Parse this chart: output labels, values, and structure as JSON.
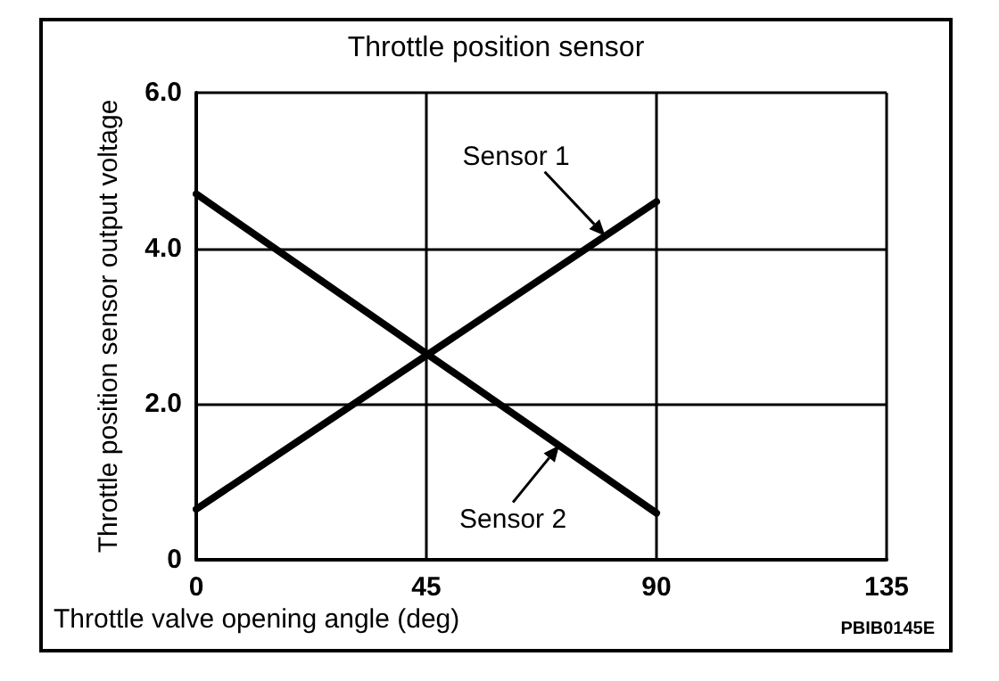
{
  "chart_data": {
    "type": "line",
    "title": "Throttle position sensor",
    "xlabel": "Throttle valve opening angle (deg)",
    "ylabel": "Throttle position sensor output voltage",
    "x": [
      0,
      90
    ],
    "series": [
      {
        "color": "#000000",
        "values": [
          0.65,
          4.6
        ]
      },
      {
        "color": "#000000",
        "values": [
          4.7,
          0.6
        ]
      }
    ],
    "xlim": [
      0,
      135
    ],
    "xticks": [
      0,
      45,
      90,
      135
    ],
    "ylim": [
      0,
      6
    ],
    "yticks": [
      0,
      {
        "value": 2,
        "label": "2.0"
      },
      {
        "value": 4,
        "label": "4.0"
      },
      {
        "value": 6,
        "label": "6.0"
      }
    ],
    "grid": true,
    "marker": "none",
    "line_style": "solid",
    "annotations": [
      {
        "text": "Sensor 1",
        "x": 80,
        "y": 4.16
      },
      {
        "text": "Sensor 2",
        "x": 71,
        "y": 1.47
      },
      "PBIB0145E"
    ]
  }
}
